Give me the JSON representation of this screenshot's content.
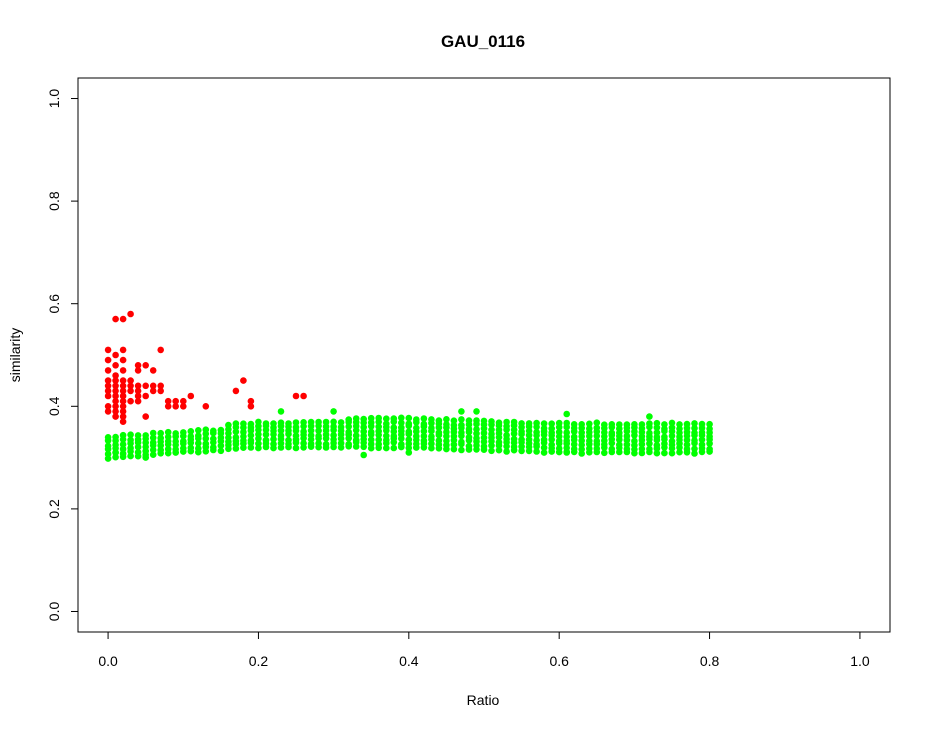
{
  "chart_data": {
    "type": "scatter",
    "title": "GAU_0116",
    "xlabel": "Ratio",
    "ylabel": "similarity",
    "xlim": [
      -0.04,
      1.04
    ],
    "ylim": [
      -0.04,
      1.04
    ],
    "x_ticks": [
      0.0,
      0.2,
      0.4,
      0.6,
      0.8,
      1.0
    ],
    "x_tick_labels": [
      "0.0",
      "0.2",
      "0.4",
      "0.6",
      "0.8",
      "1.0"
    ],
    "y_ticks": [
      0.0,
      0.2,
      0.4,
      0.6,
      0.8,
      1.0
    ],
    "y_tick_labels": [
      "0.0",
      "0.2",
      "0.4",
      "0.6",
      "0.8",
      "1.0"
    ],
    "grid": false,
    "legend": "none",
    "colors": {
      "red_series": "#ff0000",
      "green_series": "#00ff00"
    },
    "series": [
      {
        "color": "#ff0000",
        "points": [
          [
            0.0,
            0.51
          ],
          [
            0.0,
            0.49
          ],
          [
            0.0,
            0.47
          ],
          [
            0.0,
            0.45
          ],
          [
            0.0,
            0.44
          ],
          [
            0.0,
            0.43
          ],
          [
            0.0,
            0.42
          ],
          [
            0.0,
            0.4
          ],
          [
            0.0,
            0.39
          ],
          [
            0.01,
            0.57
          ],
          [
            0.01,
            0.5
          ],
          [
            0.01,
            0.48
          ],
          [
            0.01,
            0.46
          ],
          [
            0.01,
            0.45
          ],
          [
            0.01,
            0.44
          ],
          [
            0.01,
            0.43
          ],
          [
            0.01,
            0.42
          ],
          [
            0.01,
            0.41
          ],
          [
            0.01,
            0.4
          ],
          [
            0.01,
            0.39
          ],
          [
            0.01,
            0.38
          ],
          [
            0.02,
            0.57
          ],
          [
            0.02,
            0.51
          ],
          [
            0.02,
            0.49
          ],
          [
            0.02,
            0.47
          ],
          [
            0.02,
            0.45
          ],
          [
            0.02,
            0.44
          ],
          [
            0.02,
            0.43
          ],
          [
            0.02,
            0.42
          ],
          [
            0.02,
            0.41
          ],
          [
            0.02,
            0.4
          ],
          [
            0.02,
            0.39
          ],
          [
            0.02,
            0.38
          ],
          [
            0.02,
            0.37
          ],
          [
            0.03,
            0.58
          ],
          [
            0.03,
            0.45
          ],
          [
            0.03,
            0.44
          ],
          [
            0.03,
            0.43
          ],
          [
            0.03,
            0.41
          ],
          [
            0.04,
            0.48
          ],
          [
            0.04,
            0.47
          ],
          [
            0.04,
            0.44
          ],
          [
            0.04,
            0.43
          ],
          [
            0.04,
            0.42
          ],
          [
            0.04,
            0.41
          ],
          [
            0.05,
            0.48
          ],
          [
            0.05,
            0.44
          ],
          [
            0.05,
            0.42
          ],
          [
            0.05,
            0.38
          ],
          [
            0.06,
            0.47
          ],
          [
            0.06,
            0.44
          ],
          [
            0.06,
            0.43
          ],
          [
            0.07,
            0.51
          ],
          [
            0.07,
            0.44
          ],
          [
            0.07,
            0.43
          ],
          [
            0.08,
            0.41
          ],
          [
            0.08,
            0.4
          ],
          [
            0.09,
            0.41
          ],
          [
            0.09,
            0.4
          ],
          [
            0.1,
            0.41
          ],
          [
            0.1,
            0.4
          ],
          [
            0.11,
            0.42
          ],
          [
            0.13,
            0.4
          ],
          [
            0.17,
            0.43
          ],
          [
            0.18,
            0.45
          ],
          [
            0.19,
            0.41
          ],
          [
            0.19,
            0.4
          ],
          [
            0.25,
            0.42
          ],
          [
            0.26,
            0.42
          ]
        ]
      },
      {
        "color": "#00ff00",
        "points_generated": {
          "x_from": 0.0,
          "x_to": 0.8,
          "x_step": 0.01,
          "per_x": [
            [
              0.0,
              0.3,
              0.34
            ],
            [
              0.2,
              0.32,
              0.37
            ],
            [
              0.4,
              0.32,
              0.38
            ],
            [
              0.6,
              0.31,
              0.37
            ],
            [
              0.8,
              0.31,
              0.37
            ]
          ]
        },
        "extra_points": [
          [
            0.01,
            0.31
          ],
          [
            0.05,
            0.3
          ],
          [
            0.23,
            0.39
          ],
          [
            0.3,
            0.39
          ],
          [
            0.34,
            0.305
          ],
          [
            0.4,
            0.31
          ],
          [
            0.47,
            0.39
          ],
          [
            0.49,
            0.39
          ],
          [
            0.61,
            0.385
          ],
          [
            0.61,
            0.31
          ],
          [
            0.72,
            0.38
          ]
        ]
      }
    ]
  }
}
